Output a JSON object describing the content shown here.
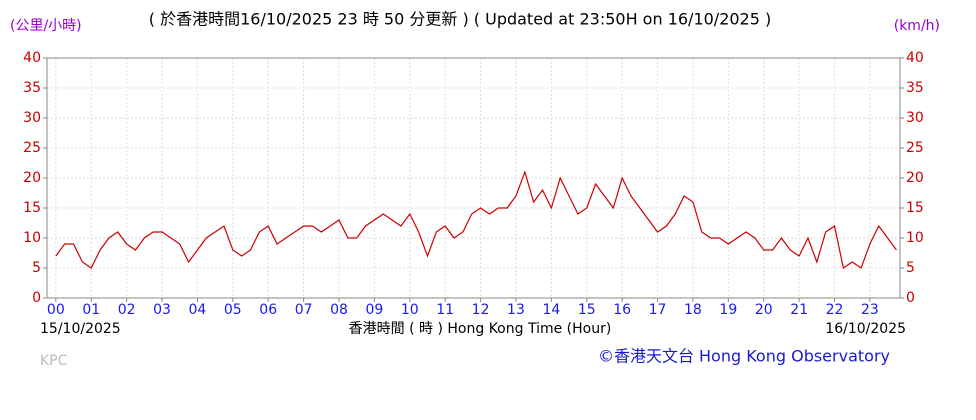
{
  "chart_data": {
    "type": "line",
    "title": "( 於香港時間16/10/2025 23 時 50 分更新 ) ( Updated at 23:50H on 16/10/2025 )",
    "y_label": "(公里/小時)",
    "y2_label": "(km/h)",
    "x_label": "香港時間 ( 時 ) Hong Kong Time (Hour)",
    "start_date": "15/10/2025",
    "end_date": "16/10/2025",
    "station": "KPC",
    "credit": "©香港天文台 Hong Kong Observatory",
    "x": [
      0,
      0.25,
      0.5,
      0.75,
      1,
      1.25,
      1.5,
      1.75,
      2,
      2.25,
      2.5,
      2.75,
      3,
      3.25,
      3.5,
      3.75,
      4,
      4.25,
      4.5,
      4.75,
      5,
      5.25,
      5.5,
      5.75,
      6,
      6.25,
      6.5,
      6.75,
      7,
      7.25,
      7.5,
      7.75,
      8,
      8.25,
      8.5,
      8.75,
      9,
      9.25,
      9.5,
      9.75,
      10,
      10.25,
      10.5,
      10.75,
      11,
      11.25,
      11.5,
      11.75,
      12,
      12.25,
      12.5,
      12.75,
      13,
      13.25,
      13.5,
      13.75,
      14,
      14.25,
      14.5,
      14.75,
      15,
      15.25,
      15.5,
      15.75,
      16,
      16.25,
      16.5,
      16.75,
      17,
      17.25,
      17.5,
      17.75,
      18,
      18.25,
      18.5,
      18.75,
      19,
      19.25,
      19.5,
      19.75,
      20,
      20.25,
      20.5,
      20.75,
      21,
      21.25,
      21.5,
      21.75,
      22,
      22.25,
      22.5,
      22.75,
      23,
      23.25,
      23.5,
      23.75
    ],
    "series": [
      {
        "name": "KPC",
        "color": "#cc0000",
        "values": [
          7,
          9,
          9,
          6,
          5,
          8,
          10,
          11,
          9,
          8,
          10,
          11,
          11,
          10,
          9,
          6,
          8,
          10,
          11,
          12,
          8,
          7,
          8,
          11,
          12,
          9,
          10,
          11,
          12,
          12,
          11,
          12,
          13,
          10,
          10,
          12,
          13,
          14,
          13,
          12,
          14,
          11,
          7,
          11,
          12,
          10,
          11,
          14,
          15,
          14,
          15,
          15,
          17,
          21,
          16,
          18,
          15,
          20,
          17,
          14,
          15,
          19,
          17,
          15,
          20,
          17,
          15,
          13,
          11,
          12,
          14,
          17,
          16,
          11,
          10,
          10,
          9,
          10,
          11,
          10,
          8,
          8,
          10,
          8,
          7,
          10,
          6,
          11,
          12,
          5,
          6,
          5,
          9,
          12,
          10,
          8
        ]
      }
    ],
    "xlim": [
      -0.25,
      23.85
    ],
    "ylim": [
      0,
      40
    ],
    "y2lim": [
      0,
      40
    ],
    "xticks": [
      {
        "value": 0,
        "label": "00"
      },
      {
        "value": 1,
        "label": "01"
      },
      {
        "value": 2,
        "label": "02"
      },
      {
        "value": 3,
        "label": "03"
      },
      {
        "value": 4,
        "label": "04"
      },
      {
        "value": 5,
        "label": "05"
      },
      {
        "value": 6,
        "label": "06"
      },
      {
        "value": 7,
        "label": "07"
      },
      {
        "value": 8,
        "label": "08"
      },
      {
        "value": 9,
        "label": "09"
      },
      10,
      11,
      12,
      13,
      14,
      15,
      16,
      17,
      18,
      19,
      20,
      21,
      22,
      23
    ],
    "yticks": [
      0,
      5,
      10,
      15,
      20,
      25,
      30,
      35,
      40
    ],
    "y2ticks": [
      0,
      5,
      10,
      15,
      20,
      25,
      30,
      35,
      40
    ],
    "grid": true
  }
}
